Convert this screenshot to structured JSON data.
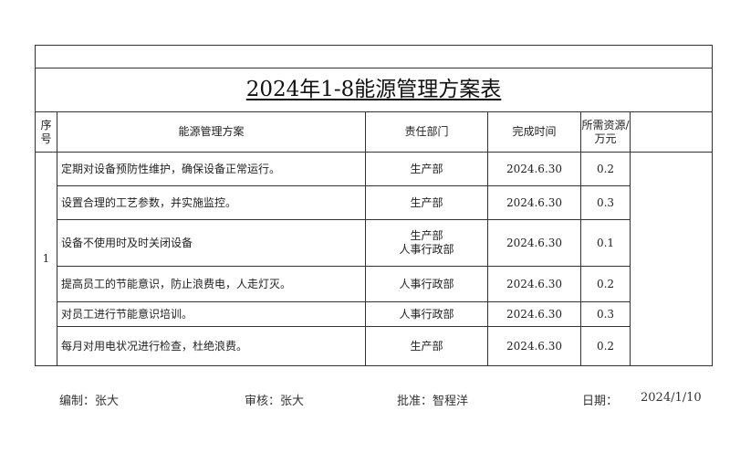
{
  "title": "2024年1-8能源管理方案表",
  "headers": {
    "seq": "序号",
    "plan": "能源管理方案",
    "dept": "责任部门",
    "time": "完成时间",
    "resource": "所需资源/万元",
    "extra": ""
  },
  "seq_value": "1",
  "rows": [
    {
      "plan": "定期对设备预防性维护，确保设备正常运行。",
      "dept": "生产部",
      "time": "2024.6.30",
      "resource": "0.2"
    },
    {
      "plan": "设置合理的工艺参数，并实施监控。",
      "dept": "生产部",
      "time": "2024.6.30",
      "resource": "0.3"
    },
    {
      "plan": "设备不使用时及时关闭设备",
      "dept": "生产部\n人事行政部",
      "time": "2024.6.30",
      "resource": "0.1"
    },
    {
      "plan": "提高员工的节能意识，防止浪费电，人走灯灭。",
      "dept": "人事行政部",
      "time": "2024.6.30",
      "resource": "0.2"
    },
    {
      "plan": "对员工进行节能意识培训。",
      "dept": "人事行政部",
      "time": "2024.6.30",
      "resource": "0.3"
    },
    {
      "plan": "每月对用电状况进行检查，杜绝浪费。",
      "dept": "生产部",
      "time": "2024.6.30",
      "resource": "0.2"
    }
  ],
  "footer": {
    "compiled": "编制：张大",
    "reviewed": "审核：张大",
    "approved": "批准：智程洋",
    "date_label": "日期：",
    "date": "2024/1/10"
  }
}
